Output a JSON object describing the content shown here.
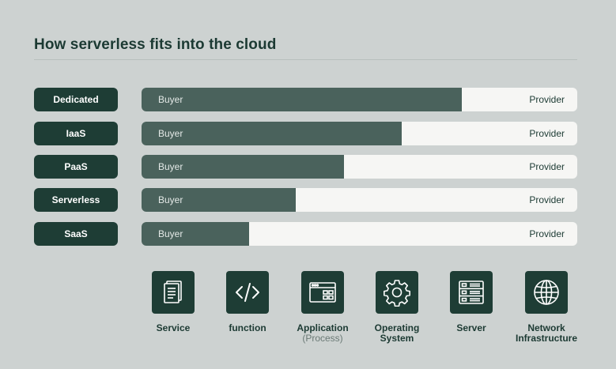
{
  "title": "How serverless fits into the cloud",
  "colors": {
    "background": "#cdd2d1",
    "pill": "#1e3d35",
    "buyer_fill": "#4a625c",
    "provider_fill": "#f6f6f4"
  },
  "models": [
    {
      "name": "Dedicated",
      "buyer_label": "Buyer",
      "provider_label": "Provider",
      "buyer_share": 0.735
    },
    {
      "name": "IaaS",
      "buyer_label": "Buyer",
      "provider_label": "Provider",
      "buyer_share": 0.598
    },
    {
      "name": "PaaS",
      "buyer_label": "Buyer",
      "provider_label": "Provider",
      "buyer_share": 0.465
    },
    {
      "name": "Serverless",
      "buyer_label": "Buyer",
      "provider_label": "Provider",
      "buyer_share": 0.354
    },
    {
      "name": "SaaS",
      "buyer_label": "Buyer",
      "provider_label": "Provider",
      "buyer_share": 0.247
    }
  ],
  "layers": [
    {
      "label": "Service",
      "sublabel": "",
      "icon": "document-icon"
    },
    {
      "label": "function",
      "sublabel": "",
      "icon": "code-icon"
    },
    {
      "label": "Application",
      "sublabel": "(Process)",
      "icon": "app-window-icon"
    },
    {
      "label": "Operating",
      "sublabel": "System",
      "icon": "gear-icon"
    },
    {
      "label": "Server",
      "sublabel": "",
      "icon": "server-icon"
    },
    {
      "label": "Network",
      "sublabel": "Infrastructure",
      "icon": "globe-icon"
    }
  ]
}
